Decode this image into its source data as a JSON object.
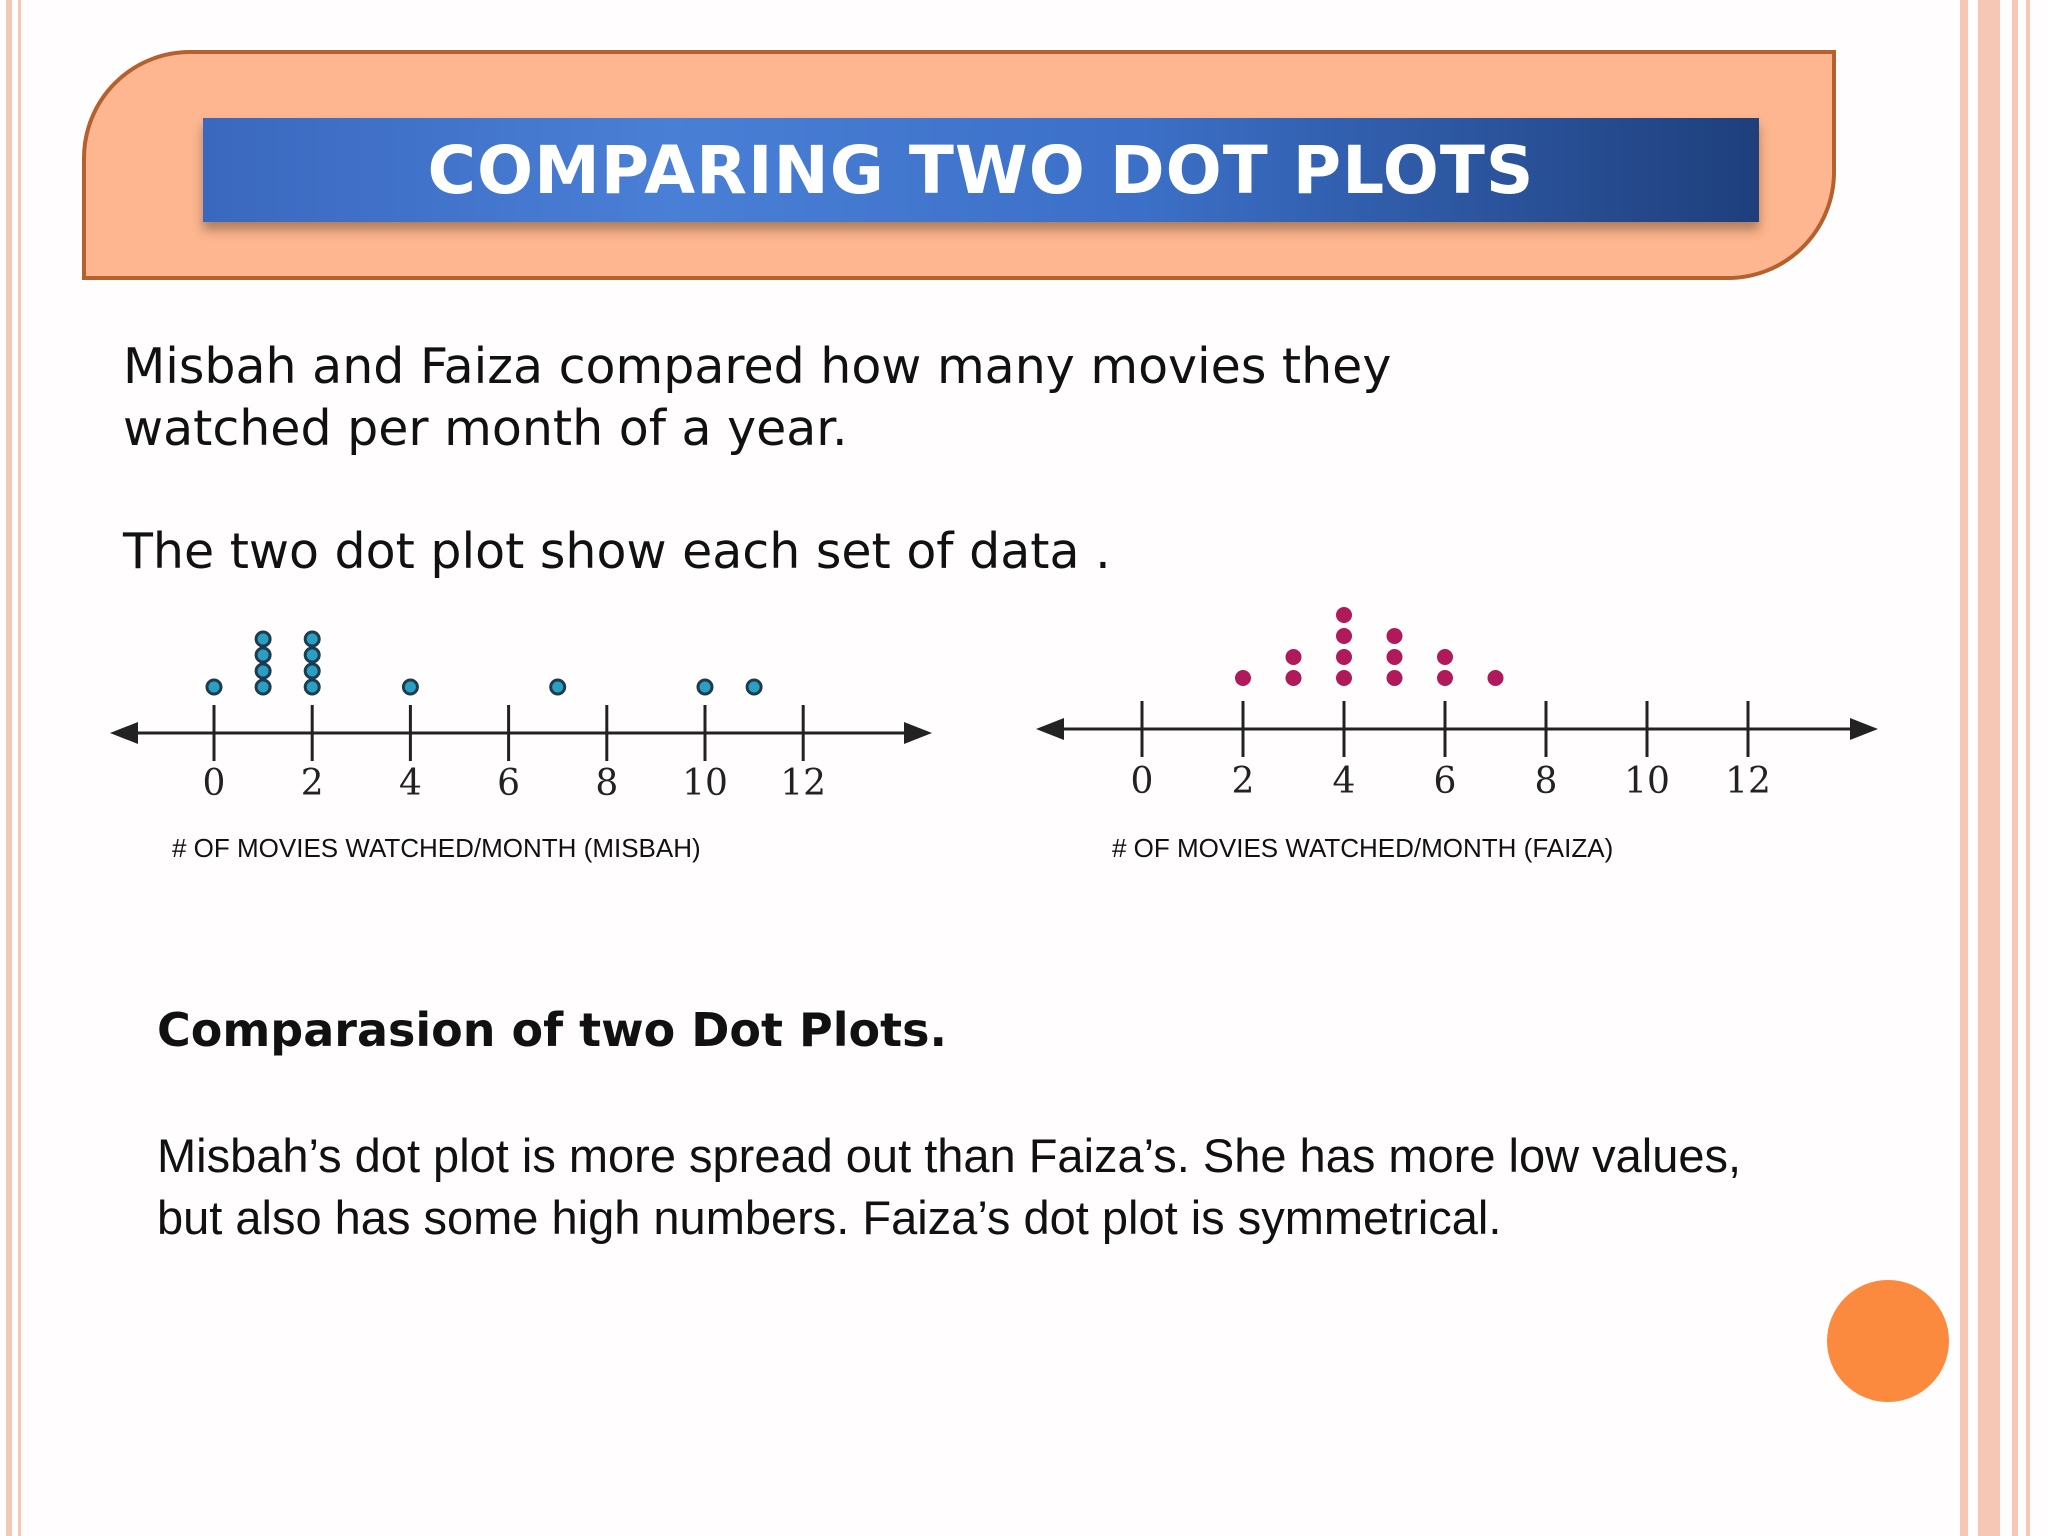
{
  "title": "COMPARING TWO DOT PLOTS",
  "intro": {
    "line1": "Misbah and Faiza compared how many movies they",
    "line2": "watched per month of a year.",
    "line3": "The two dot plot show each set of data ."
  },
  "summary": {
    "heading": "Comparasion of two Dot Plots.",
    "line1": "Misbah’s dot plot is more spread out than Faiza’s. She has more low values,",
    "line2": "but also has some high numbers. Faiza’s dot plot is symmetrical."
  },
  "colors": {
    "misbah_dot": "#2a9fc4",
    "faiza_dot": "#b0195a",
    "banner": "#fdb68f",
    "accent_circle": "#fb8a3e"
  },
  "chart_data": [
    {
      "type": "scatter",
      "subtype": "dot-plot",
      "xlabel": "# OF MOVIES WATCHED/MONTH (MISBAH)",
      "xlim": [
        0,
        12
      ],
      "ticks": [
        0,
        2,
        4,
        6,
        8,
        10,
        12
      ],
      "tick_labels": [
        "0",
        "2",
        "4",
        "6",
        "8",
        "10",
        "12"
      ],
      "values": [
        0,
        1,
        1,
        1,
        1,
        2,
        2,
        2,
        2,
        4,
        7,
        10,
        11
      ],
      "counts": [
        {
          "x": 0,
          "n": 1
        },
        {
          "x": 1,
          "n": 4
        },
        {
          "x": 2,
          "n": 4
        },
        {
          "x": 4,
          "n": 1
        },
        {
          "x": 7,
          "n": 1
        },
        {
          "x": 10,
          "n": 1
        },
        {
          "x": 11,
          "n": 1
        }
      ]
    },
    {
      "type": "scatter",
      "subtype": "dot-plot",
      "xlabel": "# OF MOVIES WATCHED/MONTH (FAIZA)",
      "xlim": [
        0,
        12
      ],
      "ticks": [
        0,
        2,
        4,
        6,
        8,
        10,
        12
      ],
      "tick_labels": [
        "0",
        "2",
        "4",
        "6",
        "8",
        "10",
        "12"
      ],
      "values": [
        2,
        3,
        3,
        4,
        4,
        4,
        4,
        5,
        5,
        5,
        6,
        6,
        7
      ],
      "counts": [
        {
          "x": 2,
          "n": 1
        },
        {
          "x": 3,
          "n": 2
        },
        {
          "x": 4,
          "n": 4
        },
        {
          "x": 5,
          "n": 3
        },
        {
          "x": 6,
          "n": 2
        },
        {
          "x": 7,
          "n": 1
        }
      ]
    }
  ]
}
